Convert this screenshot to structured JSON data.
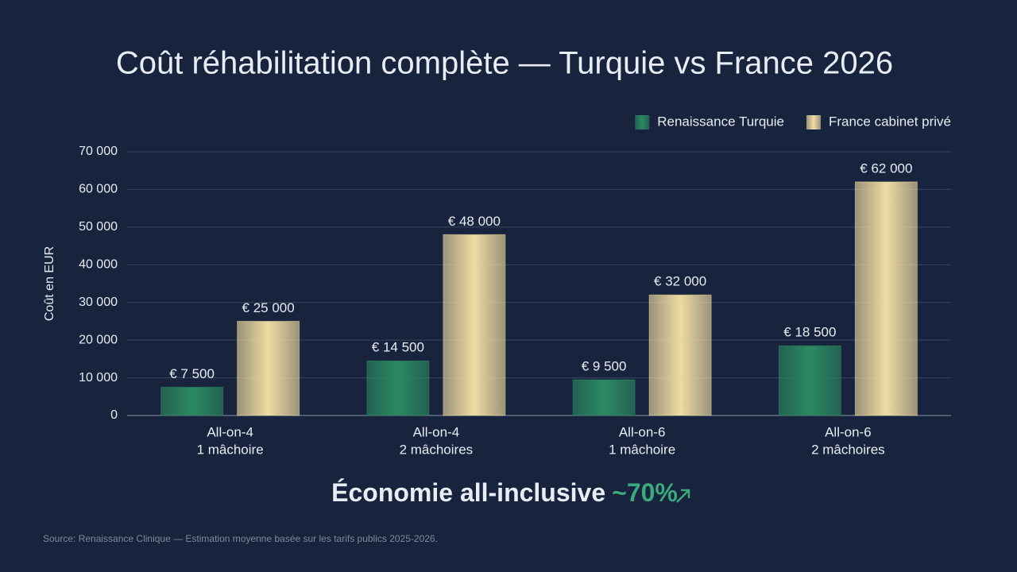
{
  "chart_data": {
    "type": "bar",
    "title": "Coût réhabilitation complète — Turquie vs France 2026",
    "y_label": "Coût en EUR",
    "categories": [
      [
        "All-on-4",
        "1 mâchoire"
      ],
      [
        "All-on-4",
        "2 mâchoires"
      ],
      [
        "All-on-6",
        "1 mâchoire"
      ],
      [
        "All-on-6",
        "2 mâchoires"
      ]
    ],
    "series": [
      {
        "name": "Renaissance Turquie",
        "color": "#2b8a62",
        "values": [
          7500,
          14500,
          9500,
          18500
        ],
        "value_labels": [
          "€ 7 500",
          "€ 14 500",
          "€ 9 500",
          "€ 18 500"
        ]
      },
      {
        "name": "France cabinet privé",
        "color": "#f0dca2",
        "values": [
          25000,
          48000,
          32000,
          62000
        ],
        "value_labels": [
          "€ 25 000",
          "€ 48 000",
          "€ 32 000",
          "€ 62 000"
        ]
      }
    ],
    "ylim": [
      0,
      70000
    ],
    "yticks": [
      0,
      {
        "value": 10000,
        "label": "10 000"
      },
      {
        "value": 20000,
        "label": "20 000"
      },
      {
        "value": 30000,
        "label": "30 000"
      },
      {
        "value": 40000,
        "label": "40 000"
      },
      {
        "value": 50000,
        "label": "50 000"
      },
      {
        "value": 60000,
        "label": "60 000"
      },
      {
        "value": 70000,
        "label": "70 000"
      }
    ],
    "grid": true,
    "legend": "top-right",
    "annotation": {
      "text": "Économie all-inclusive",
      "highlight": "~70%"
    },
    "source": "Source: Renaissance Clinique — Estimation moyenne basée sur les tarifs publics 2025-2026."
  }
}
